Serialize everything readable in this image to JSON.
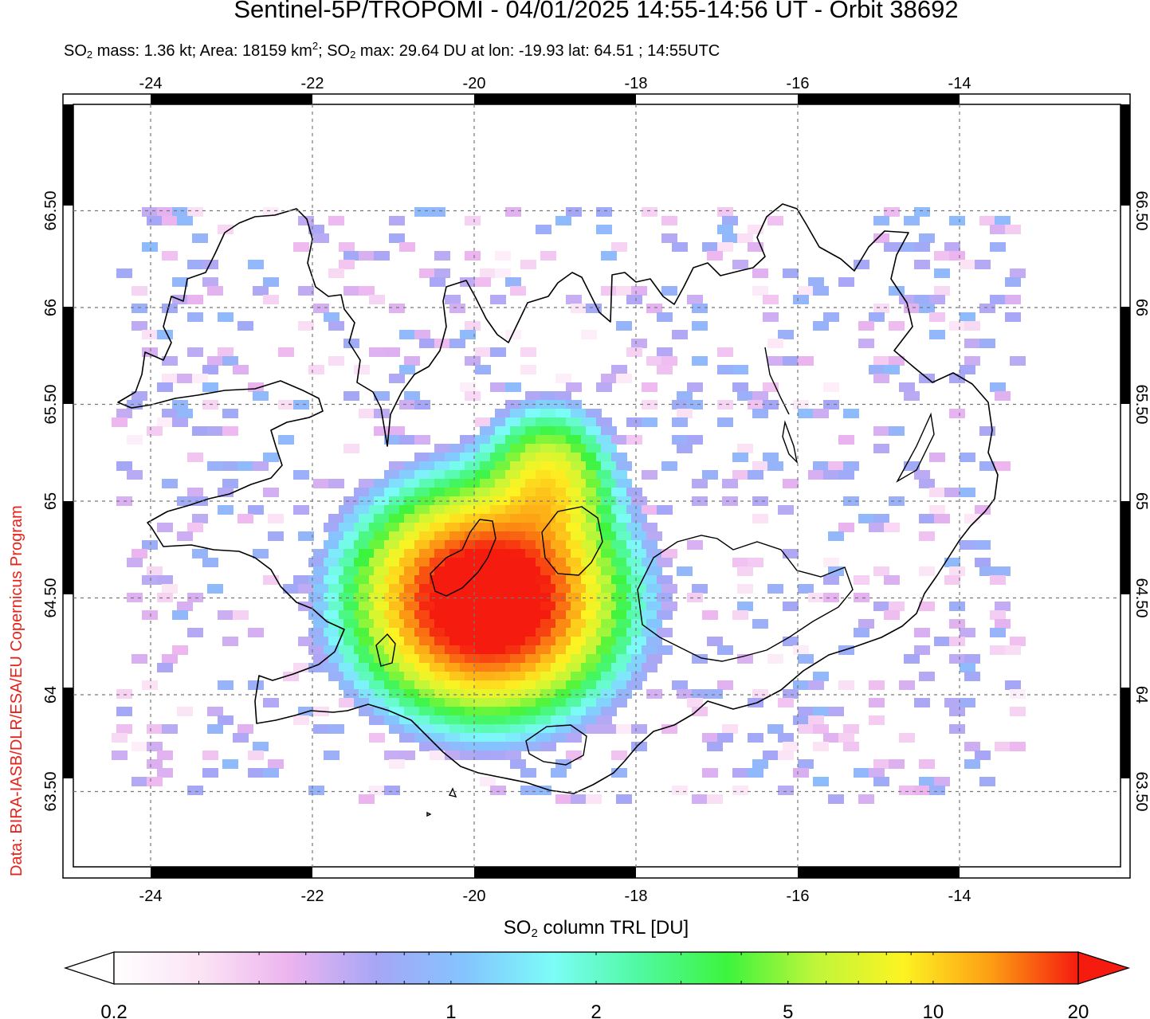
{
  "header": {
    "title": "Sentinel-5P/TROPOMI - 04/01/2025 14:55-14:56 UT - Orbit 38692",
    "stats": {
      "mass_label": "SO",
      "mass_sub": "2",
      "mass_text": " mass: 1.36 kt; Area: 18159 km",
      "area_sup": "2",
      "max_label": "; SO",
      "max_sub": "2",
      "max_text": " max: 29.64 DU at lon: -19.93 lat: 64.51 ; 14:55UTC"
    }
  },
  "credit": "Data: BIRA-IASB/DLR/ESA/EU Copernicus Program",
  "map": {
    "lon_ticks": [
      "-24",
      "-22",
      "-20",
      "-18",
      "-16",
      "-14"
    ],
    "lat_ticks": [
      "66.50",
      "66",
      "65.50",
      "65",
      "64.50",
      "64",
      "63.50"
    ],
    "max_point": {
      "lon": -19.93,
      "lat": 64.51
    }
  },
  "colorbar": {
    "title_prefix": "SO",
    "title_sub": "2",
    "title_suffix": " column TRL [DU]",
    "tick_labels": [
      "0.2",
      "1",
      "2",
      "5",
      "10",
      "20"
    ],
    "colors": [
      "#ffffff",
      "#fbe3f5",
      "#ecb4ef",
      "#a6a6f6",
      "#84c4ff",
      "#7cfcf8",
      "#50f9a0",
      "#3df43d",
      "#bef63a",
      "#fdf322",
      "#fd9e14",
      "#f51b0f"
    ]
  }
}
